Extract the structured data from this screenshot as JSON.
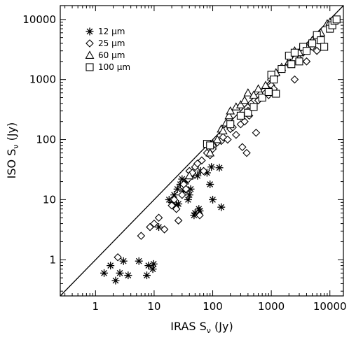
{
  "chart_data": {
    "type": "scatter",
    "title": "",
    "xlabel": "IRAS S",
    "xlabel_sub": "ν",
    "xlabel_unit": " (Jy)",
    "ylabel": "ISO S",
    "ylabel_sub": "ν",
    "ylabel_unit": " (Jy)",
    "xscale": "log",
    "yscale": "log",
    "xlim": [
      0.25,
      17000
    ],
    "ylim": [
      0.25,
      17000
    ],
    "x_ticks": [
      "1",
      "10",
      "100",
      "1000",
      "10000"
    ],
    "y_ticks": [
      "1",
      "10",
      "100",
      "1000",
      "10000"
    ],
    "grid": false,
    "legend_position": "top-left",
    "reference_line": "y = x",
    "series": [
      {
        "name": "12 μm",
        "marker": "asterisk",
        "x": [
          1.4,
          1.8,
          2.2,
          2.6,
          3.0,
          3.6,
          5.5,
          7.5,
          8.0,
          9.5,
          9.8,
          12,
          18,
          20,
          22,
          24,
          25,
          26,
          28,
          30,
          32,
          35,
          38,
          40,
          42,
          45,
          48,
          50,
          55,
          58,
          60,
          62,
          80,
          90,
          95,
          100,
          130,
          140
        ],
        "y": [
          0.6,
          0.8,
          0.45,
          0.6,
          0.95,
          0.55,
          0.95,
          0.55,
          0.8,
          0.7,
          0.85,
          3.5,
          10,
          9,
          12,
          8,
          15,
          8.5,
          18,
          22,
          14,
          20,
          10,
          12,
          15,
          25,
          5.5,
          6,
          25,
          7,
          6.5,
          30,
          28,
          18,
          35,
          10,
          34,
          7.5
        ]
      },
      {
        "name": "25 μm",
        "marker": "diamond",
        "x": [
          2.4,
          6.0,
          8.5,
          10,
          12,
          15,
          20,
          22,
          24,
          26,
          30,
          32,
          35,
          38,
          40,
          45,
          50,
          55,
          60,
          65,
          70,
          80,
          90,
          100,
          120,
          140,
          150,
          180,
          200,
          220,
          250,
          300,
          320,
          350,
          380,
          400,
          420,
          450,
          500,
          550,
          600,
          700,
          800,
          900,
          1000,
          1100,
          1200,
          1500,
          2000,
          2500,
          3000,
          3500,
          4000,
          5000,
          6000
        ],
        "y": [
          1.1,
          2.5,
          3.5,
          4,
          5,
          3.2,
          8,
          10,
          7,
          4.5,
          12,
          18,
          15,
          22,
          30,
          28,
          35,
          40,
          5.5,
          45,
          30,
          60,
          55,
          70,
          90,
          95,
          110,
          100,
          150,
          160,
          120,
          180,
          75,
          200,
          60,
          300,
          250,
          400,
          350,
          130,
          450,
          500,
          600,
          550,
          800,
          700,
          1200,
          1500,
          1800,
          1000,
          2200,
          2800,
          2000,
          3500,
          3000
        ]
      },
      {
        "name": "60 μm",
        "marker": "triangle",
        "x": [
          40,
          90,
          100,
          120,
          140,
          150,
          170,
          190,
          200,
          250,
          300,
          350,
          400,
          500,
          600,
          800,
          1000,
          1200,
          1500,
          2000,
          2500,
          3000,
          4000,
          5000,
          7000,
          9000,
          10000
        ],
        "y": [
          25,
          60,
          85,
          100,
          150,
          140,
          190,
          250,
          300,
          350,
          380,
          450,
          600,
          550,
          700,
          800,
          1100,
          1300,
          1600,
          2000,
          3000,
          2800,
          3500,
          4500,
          6000,
          8500,
          9000
        ]
      },
      {
        "name": "100 μm",
        "marker": "square",
        "x": [
          80,
          90,
          200,
          300,
          400,
          500,
          700,
          900,
          1000,
          1100,
          1200,
          1500,
          2000,
          2200,
          2500,
          3000,
          3500,
          4000,
          5000,
          6000,
          7000,
          8000,
          10000,
          11000,
          12000,
          13000
        ],
        "y": [
          85,
          80,
          180,
          250,
          280,
          350,
          500,
          620,
          1200,
          1000,
          580,
          1500,
          2500,
          1800,
          2800,
          2000,
          3500,
          3000,
          4000,
          5500,
          4500,
          3500,
          7000,
          8000,
          9500,
          10000
        ]
      }
    ]
  },
  "legend": [
    {
      "label": "12 μm"
    },
    {
      "label": "25 μm"
    },
    {
      "label": "60 μm"
    },
    {
      "label": "100 μm"
    }
  ]
}
